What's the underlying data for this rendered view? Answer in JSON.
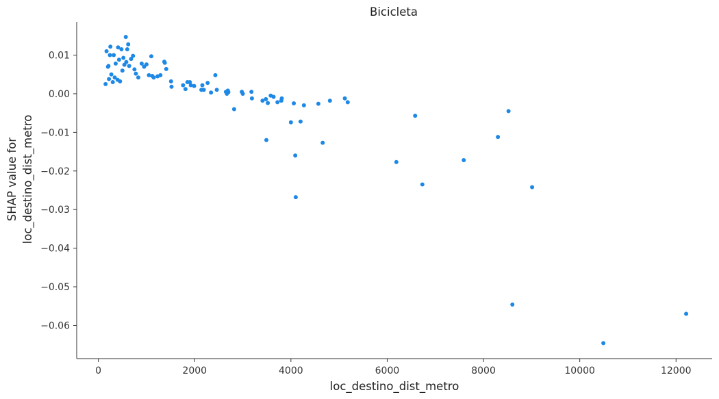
{
  "chart_data": {
    "type": "scatter",
    "title": "Bicicleta",
    "xlabel": "loc_destino_dist_metro",
    "ylabel_lines": [
      "SHAP value for",
      "loc_destino_dist_metro"
    ],
    "xlim": [
      -450,
      12750
    ],
    "ylim": [
      -0.0686,
      0.0186
    ],
    "xticks": [
      0,
      2000,
      4000,
      6000,
      8000,
      10000,
      12000
    ],
    "xtick_labels": [
      "0",
      "2000",
      "4000",
      "6000",
      "8000",
      "10000",
      "12000"
    ],
    "yticks": [
      0.01,
      0.0,
      -0.01,
      -0.02,
      -0.03,
      -0.04,
      -0.05,
      -0.06
    ],
    "ytick_labels": [
      "0.01",
      "0.00",
      "−0.01",
      "−0.02",
      "−0.03",
      "−0.04",
      "−0.05",
      "−0.06"
    ],
    "grid": false,
    "point_color": "#1e88e5",
    "points": [
      [
        150,
        0.0025
      ],
      [
        170,
        0.011
      ],
      [
        200,
        0.007
      ],
      [
        210,
        0.0072
      ],
      [
        220,
        0.0038
      ],
      [
        240,
        0.01
      ],
      [
        250,
        0.0122
      ],
      [
        270,
        0.005
      ],
      [
        300,
        0.003
      ],
      [
        320,
        0.01
      ],
      [
        340,
        0.0042
      ],
      [
        360,
        0.0078
      ],
      [
        400,
        0.0036
      ],
      [
        410,
        0.012
      ],
      [
        430,
        0.0088
      ],
      [
        450,
        0.0032
      ],
      [
        480,
        0.0115
      ],
      [
        500,
        0.006
      ],
      [
        520,
        0.0093
      ],
      [
        540,
        0.0075
      ],
      [
        570,
        0.0147
      ],
      [
        580,
        0.0082
      ],
      [
        600,
        0.0115
      ],
      [
        620,
        0.0128
      ],
      [
        640,
        0.0072
      ],
      [
        680,
        0.009
      ],
      [
        720,
        0.0098
      ],
      [
        750,
        0.0063
      ],
      [
        780,
        0.0052
      ],
      [
        830,
        0.0042
      ],
      [
        900,
        0.0078
      ],
      [
        950,
        0.007
      ],
      [
        1000,
        0.0076
      ],
      [
        1050,
        0.0048
      ],
      [
        1100,
        0.0097
      ],
      [
        1120,
        0.0046
      ],
      [
        1150,
        0.0042
      ],
      [
        1230,
        0.0045
      ],
      [
        1290,
        0.0048
      ],
      [
        1370,
        0.0083
      ],
      [
        1380,
        0.008
      ],
      [
        1410,
        0.0064
      ],
      [
        1510,
        0.0032
      ],
      [
        1520,
        0.0018
      ],
      [
        1760,
        0.0022
      ],
      [
        1810,
        0.0012
      ],
      [
        1850,
        0.003
      ],
      [
        1900,
        0.003
      ],
      [
        1920,
        0.0022
      ],
      [
        1990,
        0.002
      ],
      [
        2140,
        0.001
      ],
      [
        2160,
        0.0022
      ],
      [
        2190,
        0.001
      ],
      [
        2270,
        0.0028
      ],
      [
        2340,
        0.0003
      ],
      [
        2430,
        0.0048
      ],
      [
        2460,
        0.001
      ],
      [
        2650,
        0.0005
      ],
      [
        2670,
        0.0
      ],
      [
        2690,
        0.0008
      ],
      [
        2700,
        0.0004
      ],
      [
        2820,
        -0.004
      ],
      [
        2980,
        0.0005
      ],
      [
        3000,
        0.0
      ],
      [
        3180,
        0.0005
      ],
      [
        3190,
        -0.0012
      ],
      [
        3410,
        -0.0018
      ],
      [
        3480,
        -0.0014
      ],
      [
        3490,
        -0.012
      ],
      [
        3520,
        -0.0024
      ],
      [
        3580,
        -0.0005
      ],
      [
        3640,
        -0.0008
      ],
      [
        3720,
        -0.0022
      ],
      [
        3800,
        -0.0018
      ],
      [
        3810,
        -0.0012
      ],
      [
        4000,
        -0.0074
      ],
      [
        4060,
        -0.0025
      ],
      [
        4090,
        -0.016
      ],
      [
        4100,
        -0.0268
      ],
      [
        4200,
        -0.0072
      ],
      [
        4270,
        -0.003
      ],
      [
        4570,
        -0.0026
      ],
      [
        4660,
        -0.0127
      ],
      [
        4810,
        -0.0018
      ],
      [
        5120,
        -0.0012
      ],
      [
        5180,
        -0.0022
      ],
      [
        6190,
        -0.0177
      ],
      [
        6580,
        -0.0057
      ],
      [
        6730,
        -0.0235
      ],
      [
        7590,
        -0.0172
      ],
      [
        8300,
        -0.0112
      ],
      [
        8520,
        -0.0045
      ],
      [
        8600,
        -0.0546
      ],
      [
        9010,
        -0.0242
      ],
      [
        10490,
        -0.0646
      ],
      [
        12210,
        -0.057
      ]
    ]
  }
}
